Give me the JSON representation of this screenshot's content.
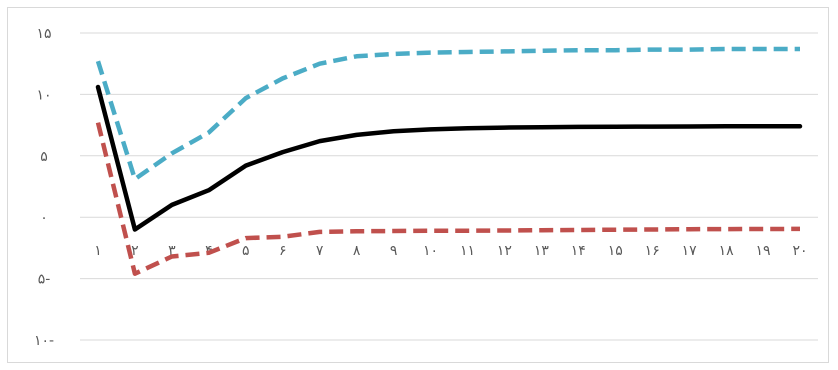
{
  "chart_data": {
    "type": "line",
    "title": "",
    "xlabel": "",
    "ylabel": "",
    "categories": [
      "۱",
      "۲",
      "۳",
      "۴",
      "۵",
      "۶",
      "۷",
      "۸",
      "۹",
      "۱۰",
      "۱۱",
      "۱۲",
      "۱۳",
      "۱۴",
      "۱۵",
      "۱۶",
      "۱۷",
      "۱۸",
      "۱۹",
      "۲۰"
    ],
    "y_ticks": [
      {
        "value": 15,
        "label": "۱۵"
      },
      {
        "value": 10,
        "label": "۱۰"
      },
      {
        "value": 5,
        "label": "۵"
      },
      {
        "value": 0,
        "label": "۰"
      },
      {
        "value": -5,
        "label": "۵-"
      },
      {
        "value": -10,
        "label": "۱۰-"
      }
    ],
    "ylim": [
      -10,
      15
    ],
    "grid": true,
    "legend": "none",
    "series": [
      {
        "color": "#4bacc6",
        "dash": true,
        "values": [
          12.7,
          3.1,
          5.2,
          6.9,
          9.7,
          11.3,
          12.5,
          13.1,
          13.3,
          13.4,
          13.45,
          13.5,
          13.55,
          13.6,
          13.6,
          13.65,
          13.65,
          13.7,
          13.7,
          13.7
        ]
      },
      {
        "color": "#000000",
        "dash": false,
        "values": [
          10.6,
          -1.0,
          1.0,
          2.2,
          4.2,
          5.3,
          6.2,
          6.7,
          7.0,
          7.15,
          7.25,
          7.3,
          7.33,
          7.35,
          7.37,
          7.38,
          7.39,
          7.4,
          7.4,
          7.4
        ]
      },
      {
        "color": "#c0504d",
        "dash": true,
        "values": [
          7.7,
          -4.6,
          -3.2,
          -2.9,
          -1.7,
          -1.6,
          -1.2,
          -1.15,
          -1.12,
          -1.1,
          -1.1,
          -1.08,
          -1.06,
          -1.04,
          -1.02,
          -1.0,
          -0.98,
          -0.97,
          -0.96,
          -0.95
        ]
      }
    ]
  }
}
